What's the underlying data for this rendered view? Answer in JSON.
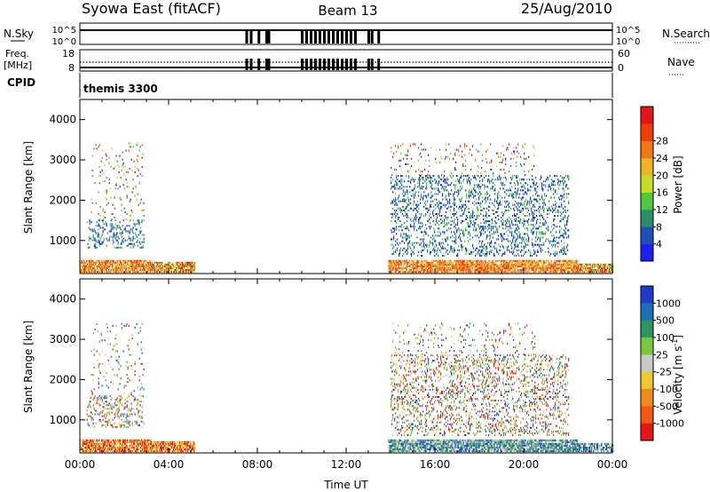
{
  "header": {
    "title": "Syowa East (fitACF)",
    "beam": "Beam 13",
    "date": "25/Aug/2010"
  },
  "status": {
    "nsky": {
      "label": "N.Sky",
      "y_ticks": [
        "10^5",
        "10^0"
      ]
    },
    "nsearch": {
      "label": "N.Search",
      "y_ticks": [
        "10^5",
        "10^0"
      ]
    },
    "freq": {
      "label_top": "Freq.",
      "label_unit": "[MHz]",
      "y_ticks": [
        "18",
        "8"
      ]
    },
    "nave": {
      "label": "Nave",
      "y_ticks": [
        "60",
        "0"
      ]
    },
    "cpid": {
      "label": "CPID",
      "text": "themis 3300"
    },
    "gaps_ut_hours": [
      7.5,
      7.7,
      8.05,
      8.4,
      8.5,
      10.0,
      10.2,
      10.4,
      10.6,
      10.8,
      11.0,
      11.2,
      11.4,
      11.6,
      11.8,
      12.0,
      12.2,
      12.4,
      13.0,
      13.15,
      13.45
    ]
  },
  "chart_data": [
    {
      "type": "heatmap",
      "panel": "power",
      "ylabel": "Slant Range [km]",
      "xlabel": "Time UT",
      "xlim": [
        0,
        24
      ],
      "ylim": [
        180,
        4500
      ],
      "y_ticks": [
        "1000",
        "2000",
        "3000",
        "4000"
      ],
      "x_ticks": [
        "00:00",
        "04:00",
        "08:00",
        "12:00",
        "16:00",
        "20:00",
        "00:00"
      ],
      "colorbar": {
        "label": "Power [dB]",
        "ticks": [
          "4",
          "8",
          "12",
          "16",
          "20",
          "24",
          "28"
        ],
        "colors": [
          "#1e1ef0",
          "#1e50b4",
          "#2d8c6e",
          "#50c83c",
          "#c8dc28",
          "#f0b428",
          "#f07814",
          "#f03c0a",
          "#e61414"
        ]
      },
      "regions": [
        {
          "t": [
            0.0,
            3.2
          ],
          "r": [
            200,
            500
          ],
          "level": "high"
        },
        {
          "t": [
            0.3,
            2.9
          ],
          "r": [
            800,
            1500
          ],
          "level": "low"
        },
        {
          "t": [
            0.5,
            2.9
          ],
          "r": [
            1500,
            3400
          ],
          "level": "sparse"
        },
        {
          "t": [
            3.2,
            5.2
          ],
          "r": [
            200,
            450
          ],
          "level": "mid"
        },
        {
          "t": [
            13.9,
            22.4
          ],
          "r": [
            200,
            500
          ],
          "level": "high"
        },
        {
          "t": [
            14.0,
            22.0
          ],
          "r": [
            600,
            2600
          ],
          "level": "low"
        },
        {
          "t": [
            14.0,
            20.5
          ],
          "r": [
            2600,
            3400
          ],
          "level": "sparse"
        },
        {
          "t": [
            22.4,
            24.0
          ],
          "r": [
            200,
            420
          ],
          "level": "mid"
        }
      ]
    },
    {
      "type": "heatmap",
      "panel": "velocity",
      "ylabel": "Slant Range [km]",
      "xlabel": "Time UT",
      "xlim": [
        0,
        24
      ],
      "ylim": [
        180,
        4500
      ],
      "y_ticks": [
        "1000",
        "2000",
        "3000",
        "4000"
      ],
      "x_ticks": [
        "00:00",
        "04:00",
        "08:00",
        "12:00",
        "16:00",
        "20:00",
        "00:00"
      ],
      "colorbar": {
        "label": "Velocity [m s",
        "label_sup": "-1",
        "label_end": "]",
        "ticks": [
          "1000",
          "500",
          "100",
          "25",
          "-25",
          "-100",
          "-500",
          "-1000"
        ],
        "colors": [
          "#1e3cc8",
          "#1e6eb4",
          "#2d9664",
          "#78c83c",
          "#c8c8c8",
          "#f0c832",
          "#f08c1e",
          "#f05a14",
          "#e61414"
        ]
      },
      "regions": [
        {
          "t": [
            0.0,
            3.2
          ],
          "r": [
            200,
            500
          ],
          "level": "neg"
        },
        {
          "t": [
            0.3,
            2.9
          ],
          "r": [
            800,
            1600
          ],
          "level": "mixed"
        },
        {
          "t": [
            0.5,
            2.9
          ],
          "r": [
            1600,
            3400
          ],
          "level": "sparse"
        },
        {
          "t": [
            3.2,
            5.2
          ],
          "r": [
            200,
            450
          ],
          "level": "neg"
        },
        {
          "t": [
            13.9,
            22.4
          ],
          "r": [
            200,
            500
          ],
          "level": "pos"
        },
        {
          "t": [
            14.0,
            22.0
          ],
          "r": [
            600,
            2600
          ],
          "level": "mixed"
        },
        {
          "t": [
            14.0,
            20.5
          ],
          "r": [
            2600,
            3400
          ],
          "level": "sparse"
        },
        {
          "t": [
            22.4,
            24.0
          ],
          "r": [
            200,
            420
          ],
          "level": "pos"
        }
      ]
    }
  ]
}
